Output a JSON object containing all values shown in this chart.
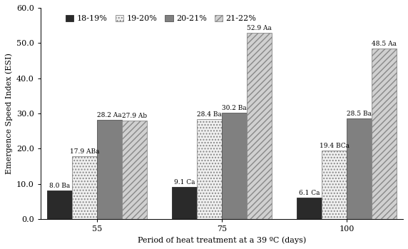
{
  "groups": [
    "55",
    "75",
    "100"
  ],
  "series": [
    "18-19%",
    "19-20%",
    "20-21%",
    "21-22%"
  ],
  "values": [
    [
      8.0,
      9.1,
      6.1
    ],
    [
      17.9,
      28.4,
      19.4
    ],
    [
      28.2,
      30.2,
      28.5
    ],
    [
      27.9,
      52.9,
      48.5
    ]
  ],
  "labels": [
    [
      "8.0 Ba",
      "9.1 Ca",
      "6.1 Ca"
    ],
    [
      "17.9 ABa",
      "28.4 Ba",
      "19.4 BCa"
    ],
    [
      "28.2 Aa",
      "30.2 Ba",
      "28.5 Ba"
    ],
    [
      "27.9 Ab",
      "52.9 Aa",
      "48.5 Aa"
    ]
  ],
  "bar_colors": [
    "#2a2a2a",
    "#f0f0f0",
    "#808080",
    "#d0d0d0"
  ],
  "bar_hatches": [
    "",
    "....",
    "",
    "////"
  ],
  "bar_edgecolors": [
    "#2a2a2a",
    "#888888",
    "#555555",
    "#888888"
  ],
  "hatch_colors": [
    "#2a2a2a",
    "#aaaaaa",
    "#555555",
    "#888888"
  ],
  "ylabel": "Emergence Speed Index (ESI)",
  "xlabel": "Period of heat treatment at a 39 ºC (days)",
  "ylim": [
    0,
    60
  ],
  "yticks": [
    0.0,
    10.0,
    20.0,
    30.0,
    40.0,
    50.0,
    60.0
  ],
  "axis_fontsize": 8,
  "tick_fontsize": 8,
  "legend_fontsize": 8,
  "label_fontsize": 6.5,
  "bar_width": 0.2,
  "group_positions": [
    1,
    2,
    3
  ]
}
